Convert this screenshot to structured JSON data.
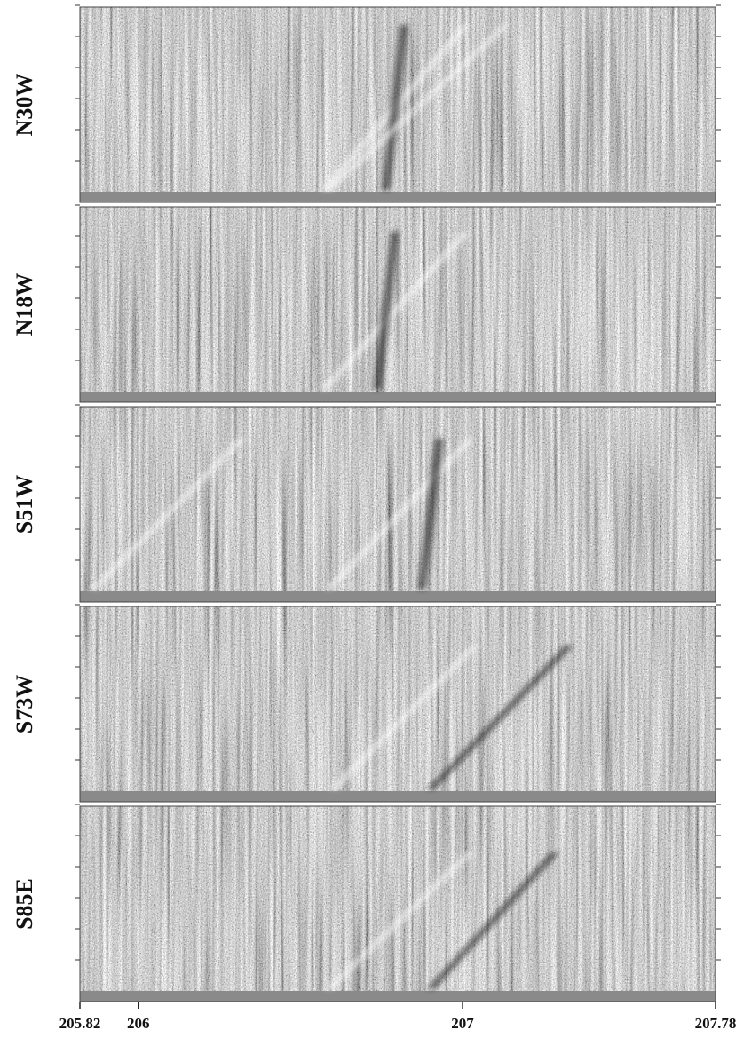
{
  "chart_data": {
    "type": "heatmap",
    "panels": [
      "N30W",
      "N18W",
      "S51W",
      "S73W",
      "S85E"
    ],
    "xlim": [
      205.82,
      207.78
    ],
    "xticks": [
      205.82,
      206,
      207,
      207.78
    ]
  }
}
